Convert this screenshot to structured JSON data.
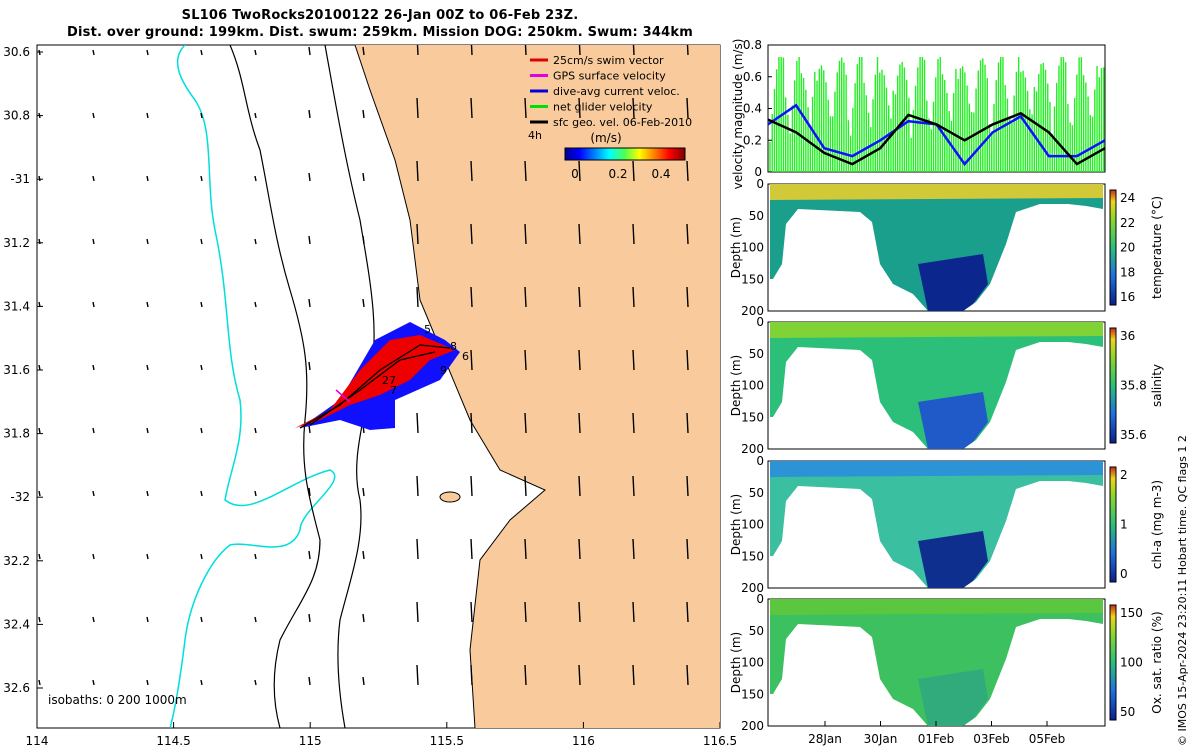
{
  "header": {
    "line1": "SL106 TwoRocks20100122 26-Jan 00Z to 06-Feb 23Z.",
    "line2": "Dist. over ground: 199km. Dist. swum: 259km. Mission DOG: 250km. Swum: 344km"
  },
  "map": {
    "lon_ticks": [
      "114",
      "114.5",
      "115",
      "115.5",
      "116",
      "116.5"
    ],
    "lat_ticks": [
      "30.6",
      "30.8",
      "-31",
      "31.2",
      "31.4",
      "31.6",
      "31.8",
      "-32",
      "32.2",
      "32.4",
      "32.6"
    ],
    "isobaths_label": "isobaths: 0   200  1000m",
    "track_day_labels": [
      "5",
      "8",
      "6",
      "9",
      "27",
      "7"
    ],
    "legend": [
      {
        "label": "25cm/s swim vector",
        "color": "#e00000"
      },
      {
        "label": "GPS surface velocity",
        "color": "#e000e0"
      },
      {
        "label": "dive-avg current veloc.",
        "color": "#0000e0"
      },
      {
        "label": "net glider velocity",
        "color": "#00e000"
      },
      {
        "label": "sfc geo. vel. 06-Feb-2010",
        "color": "#000000"
      }
    ],
    "legend_extra": "4h",
    "colorbar": {
      "label": "(m/s)",
      "ticks": [
        "0",
        "0.2",
        "0.4"
      ]
    },
    "colors": {
      "land": "#f9cb9c",
      "isobath_200": "#00dede",
      "coast": "#000000"
    }
  },
  "velocity_panel": {
    "ylabel": "velocity magnitude (m/s)",
    "yticks": [
      "0",
      "0.2",
      "0.4",
      "0.6",
      "0.8"
    ]
  },
  "time_axis": {
    "ticks": [
      "28Jan",
      "30Jan",
      "01Feb",
      "03Feb",
      "05Feb"
    ]
  },
  "depth_panels": [
    {
      "name": "temperature",
      "ylabel": "Depth (m)",
      "cbar_label": "temperature (°C)",
      "cbar_ticks": [
        "16",
        "18",
        "20",
        "22",
        "24"
      ]
    },
    {
      "name": "salinity",
      "ylabel": "Depth (m)",
      "cbar_label": "salinity",
      "cbar_ticks": [
        "35.6",
        "35.8",
        "36"
      ]
    },
    {
      "name": "chla",
      "ylabel": "Depth (m)",
      "cbar_label": "chl-a (mg m-3)",
      "cbar_ticks": [
        "0",
        "1",
        "2"
      ]
    },
    {
      "name": "oxygen",
      "ylabel": "Depth (m)",
      "cbar_label": "Ox. sat. ratio (%)",
      "cbar_ticks": [
        "50",
        "100",
        "150"
      ]
    }
  ],
  "depth_ticks": [
    "0",
    "50",
    "100",
    "150",
    "200"
  ],
  "side_note": "© IMOS 15-Apr-2024 23:20:11 Hobart time. QC flags 1  2",
  "chart_data": [
    {
      "type": "line",
      "title": "",
      "ylabel": "velocity magnitude (m/s)",
      "ylim": [
        0,
        0.8
      ],
      "x": [
        26,
        27,
        28,
        29,
        30,
        31,
        32,
        33,
        34,
        35,
        36,
        37,
        38
      ],
      "series": [
        {
          "values": [
            0.33,
            0.25,
            0.12,
            0.05,
            0.15,
            0.36,
            0.3,
            0.2,
            0.3,
            0.37,
            0.25,
            0.05,
            0.15
          ]
        },
        {
          "values": [
            0.3,
            0.42,
            0.15,
            0.1,
            0.2,
            0.32,
            0.3,
            0.05,
            0.25,
            0.35,
            0.1,
            0.1,
            0.2
          ]
        }
      ]
    },
    {
      "type": "heatmap",
      "ylabel": "Depth (m)",
      "variable": "temperature (°C)",
      "zlim": [
        15,
        25
      ],
      "ylim": [
        200,
        0
      ]
    },
    {
      "type": "heatmap",
      "ylabel": "Depth (m)",
      "variable": "salinity",
      "zlim": [
        35.5,
        36.1
      ],
      "ylim": [
        200,
        0
      ]
    },
    {
      "type": "heatmap",
      "ylabel": "Depth (m)",
      "variable": "chl-a (mg m-3)",
      "zlim": [
        0,
        2
      ],
      "ylim": [
        200,
        0
      ]
    },
    {
      "type": "heatmap",
      "ylabel": "Depth (m)",
      "variable": "Ox. sat. ratio (%)",
      "zlim": [
        20,
        170
      ],
      "ylim": [
        200,
        0
      ]
    }
  ]
}
